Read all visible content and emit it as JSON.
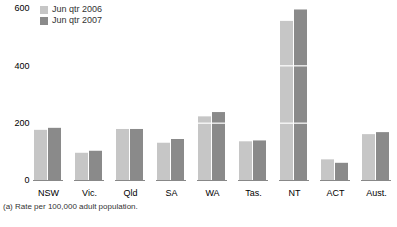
{
  "chart_data": {
    "type": "bar",
    "categories": [
      "NSW",
      "Vic.",
      "Qld",
      "SA",
      "WA",
      "Tas.",
      "NT",
      "ACT",
      "Aust."
    ],
    "series": [
      {
        "name": "Jun qtr 2006",
        "color": "#c6c6c6",
        "values": [
          175,
          95,
          178,
          130,
          222,
          135,
          555,
          72,
          160
        ]
      },
      {
        "name": "Jun qtr 2007",
        "color": "#8a8a8a",
        "values": [
          182,
          102,
          178,
          143,
          237,
          138,
          595,
          60,
          167
        ]
      }
    ],
    "ylim": [
      0,
      600
    ],
    "yticks": [
      0,
      200,
      400,
      600
    ],
    "grid": true,
    "legend": "upper left",
    "caption": "(a) Rate per 100,000 adult population."
  }
}
